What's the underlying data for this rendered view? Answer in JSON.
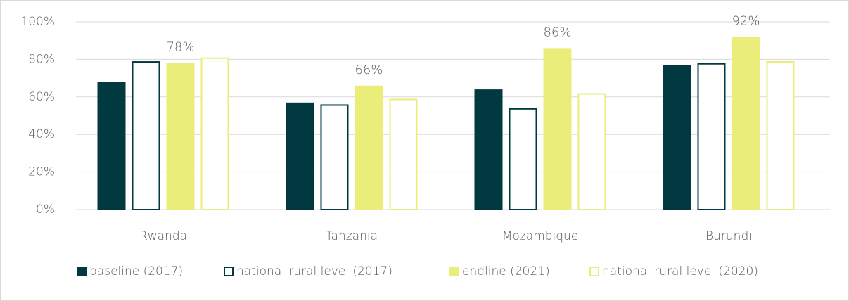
{
  "chart_data": {
    "type": "bar",
    "categories": [
      "Rwanda",
      "Tanzania",
      "Mozambique",
      "Burundi"
    ],
    "series": [
      {
        "name": "baseline (2017)",
        "color": "#003a40",
        "style": "filled",
        "values": [
          68,
          57,
          64,
          77
        ]
      },
      {
        "name": "national rural level (2017)",
        "color": "#003a40",
        "style": "outline",
        "values": [
          79,
          56,
          54,
          78
        ]
      },
      {
        "name": "endline (2021)",
        "color": "#eaed7a",
        "style": "filled",
        "values": [
          78,
          66,
          86,
          92
        ],
        "value_labels": [
          "78%",
          "66%",
          "86%",
          "92%"
        ]
      },
      {
        "name": "national rural level (2020)",
        "color": "#eaed7a",
        "style": "outline",
        "values": [
          81,
          59,
          62,
          79
        ]
      }
    ],
    "ylim": [
      0,
      100
    ],
    "yticks": [
      {
        "value": 0,
        "label": "0%"
      },
      {
        "value": 20,
        "label": "20%"
      },
      {
        "value": 40,
        "label": "40%"
      },
      {
        "value": 60,
        "label": "60%"
      },
      {
        "value": 80,
        "label": "80%"
      },
      {
        "value": 100,
        "label": "100%"
      }
    ],
    "grid": true,
    "legend": "bottom"
  }
}
